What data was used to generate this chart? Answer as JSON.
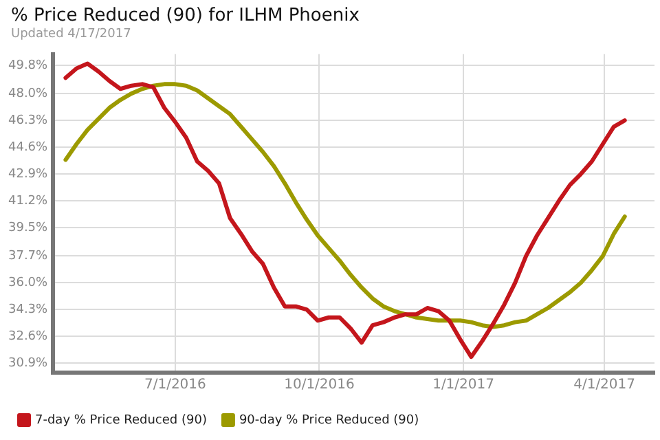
{
  "chart_data": {
    "type": "line",
    "title": "% Price Reduced (90) for ILHM Phoenix",
    "subtitle": "Updated 4/17/2017",
    "x": [
      "2016-04-22",
      "2016-04-29",
      "2016-05-06",
      "2016-05-13",
      "2016-05-20",
      "2016-05-27",
      "2016-06-03",
      "2016-06-10",
      "2016-06-17",
      "2016-06-24",
      "2016-07-01",
      "2016-07-08",
      "2016-07-15",
      "2016-07-22",
      "2016-07-29",
      "2016-08-05",
      "2016-08-12",
      "2016-08-19",
      "2016-08-26",
      "2016-09-02",
      "2016-09-09",
      "2016-09-16",
      "2016-09-23",
      "2016-09-30",
      "2016-10-07",
      "2016-10-14",
      "2016-10-21",
      "2016-10-28",
      "2016-11-04",
      "2016-11-11",
      "2016-11-18",
      "2016-11-25",
      "2016-12-02",
      "2016-12-09",
      "2016-12-16",
      "2016-12-23",
      "2016-12-30",
      "2017-01-06",
      "2017-01-13",
      "2017-01-20",
      "2017-01-27",
      "2017-02-03",
      "2017-02-10",
      "2017-02-17",
      "2017-02-24",
      "2017-03-03",
      "2017-03-10",
      "2017-03-17",
      "2017-03-24",
      "2017-03-31",
      "2017-04-07",
      "2017-04-14"
    ],
    "series": [
      {
        "name": "7-day % Price Reduced (90)",
        "color": "#c4161c",
        "values": [
          49.0,
          49.6,
          49.9,
          49.4,
          48.8,
          48.3,
          48.5,
          48.6,
          48.4,
          47.1,
          46.2,
          45.2,
          43.7,
          43.1,
          42.3,
          40.1,
          39.1,
          38.0,
          37.2,
          35.7,
          34.5,
          34.5,
          34.3,
          33.6,
          33.8,
          33.8,
          33.1,
          32.2,
          33.3,
          33.5,
          33.8,
          34.0,
          34.0,
          34.4,
          34.2,
          33.6,
          32.4,
          31.3,
          32.3,
          33.4,
          34.6,
          36.0,
          37.7,
          39.0,
          40.1,
          41.2,
          42.2,
          42.9,
          43.7,
          44.8,
          45.9,
          46.3
        ]
      },
      {
        "name": "90-day % Price Reduced (90)",
        "color": "#9c9a00",
        "values": [
          43.8,
          44.8,
          45.7,
          46.4,
          47.1,
          47.6,
          48.0,
          48.3,
          48.5,
          48.6,
          48.6,
          48.5,
          48.2,
          47.7,
          47.2,
          46.7,
          45.9,
          45.1,
          44.3,
          43.4,
          42.3,
          41.1,
          40.0,
          39.0,
          38.2,
          37.4,
          36.5,
          35.7,
          35.0,
          34.5,
          34.2,
          34.0,
          33.8,
          33.7,
          33.6,
          33.6,
          33.6,
          33.5,
          33.3,
          33.2,
          33.3,
          33.5,
          33.6,
          34.0,
          34.4,
          34.9,
          35.4,
          36.0,
          36.8,
          37.7,
          39.1,
          40.2
        ]
      }
    ],
    "xlim": [
      "2016-04-14",
      "2017-05-03"
    ],
    "xticks": [
      {
        "value": "2016-07-01",
        "label": "7/1/2016"
      },
      {
        "value": "2016-10-01",
        "label": "10/1/2016"
      },
      {
        "value": "2017-01-01",
        "label": "1/1/2017"
      },
      {
        "value": "2017-04-01",
        "label": "4/1/2017"
      }
    ],
    "ylim": [
      30.3,
      50.5
    ],
    "yticks": [
      {
        "value": 30.9,
        "label": "30.9%"
      },
      {
        "value": 32.6,
        "label": "32.6%"
      },
      {
        "value": 34.3,
        "label": "34.3%"
      },
      {
        "value": 36.0,
        "label": "36.0%"
      },
      {
        "value": 37.7,
        "label": "37.7%"
      },
      {
        "value": 39.5,
        "label": "39.5%"
      },
      {
        "value": 41.2,
        "label": "41.2%"
      },
      {
        "value": 42.9,
        "label": "42.9%"
      },
      {
        "value": 44.6,
        "label": "44.6%"
      },
      {
        "value": 46.3,
        "label": "46.3%"
      },
      {
        "value": 48.0,
        "label": "48.0%"
      },
      {
        "value": 49.8,
        "label": "49.8%"
      }
    ],
    "grid": true,
    "legend": "bottom",
    "marker": "none",
    "line_style": "solid"
  }
}
